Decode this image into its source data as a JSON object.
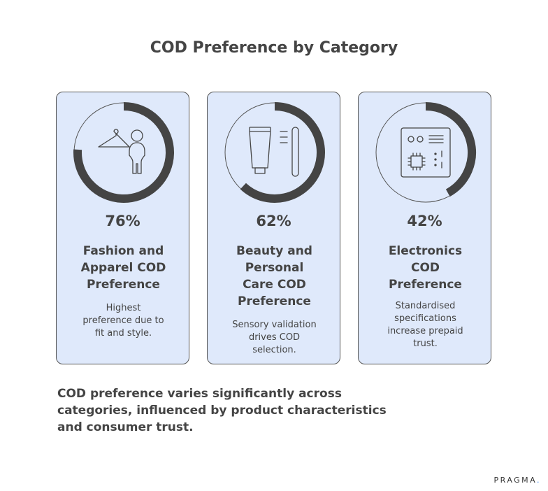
{
  "colors": {
    "card_bg": "#dfe9fb",
    "ring_fill": "#444444",
    "ring_track": "#555555",
    "text": "#444444",
    "brand_dot": "#2f80ed"
  },
  "chart_data": {
    "type": "pie",
    "title": "COD Preference by Category",
    "unit": "%",
    "categories": [
      "Fashion and Apparel COD Preference",
      "Beauty and Personal Care COD Preference",
      "Electronics COD Preference"
    ],
    "values": [
      76,
      62,
      42
    ],
    "ylim": [
      0,
      100
    ]
  },
  "cards": [
    {
      "value_label": "76%",
      "title_lines": [
        "Fashion and",
        "Apparel COD",
        "Preference"
      ],
      "desc_lines": [
        "Highest",
        "preference due to",
        "fit and style."
      ],
      "icon": "hanger-person-icon"
    },
    {
      "value_label": "62%",
      "title_lines": [
        "Beauty and",
        "Personal",
        "Care COD",
        "Preference"
      ],
      "desc_lines": [
        "Sensory validation",
        "drives COD",
        "selection."
      ],
      "icon": "cosmetics-tube-icon"
    },
    {
      "value_label": "42%",
      "title_lines": [
        "Electronics",
        "COD",
        "Preference"
      ],
      "desc_lines": [
        "Standardised",
        "specifications",
        "increase prepaid",
        "trust."
      ],
      "icon": "circuit-board-icon"
    }
  ],
  "summary_lines": [
    "COD preference varies significantly across",
    "categories, influenced by product characteristics",
    "and consumer trust."
  ],
  "brand": {
    "name": "PRAGMA",
    "dot": "."
  }
}
